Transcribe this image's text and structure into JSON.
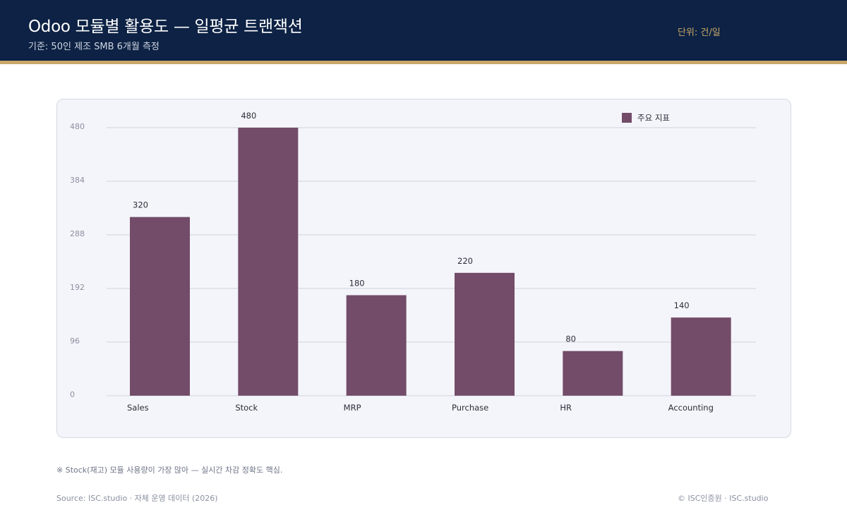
{
  "header": {
    "title": "Odoo 모듈별 활용도 — 일평균 트랜잭션",
    "subtitle": "기준: 50인 제조 SMB 6개월 측정",
    "unit": "단위: 건/일"
  },
  "colors": {
    "header_bg": "#0d2244",
    "accent": "#c9a86a",
    "bar": "#734c69",
    "panel_bg": "#f4f5fa"
  },
  "chart_data": {
    "type": "bar",
    "categories": [
      "Sales",
      "Stock",
      "MRP",
      "Purchase",
      "HR",
      "Accounting"
    ],
    "series": [
      {
        "name": "주요 지표",
        "values": [
          320,
          480,
          180,
          220,
          80,
          140
        ]
      }
    ],
    "ylim": [
      0,
      480
    ],
    "yticks": [
      "0",
      "96",
      "192",
      "288",
      "384",
      "480"
    ],
    "data_labels": [
      "320",
      "480",
      "180",
      "220",
      "80",
      "140"
    ],
    "grid": true,
    "legend": "top-right"
  },
  "footer": {
    "note": "※ Stock(재고) 모듈 사용량이 가장 많아 — 실시간 차감 정확도 핵심.",
    "source": "Source: ISC.studio · 자체 운영 데이터 (2026)",
    "copyright": "© ISC인증원 · ISC.studio"
  }
}
